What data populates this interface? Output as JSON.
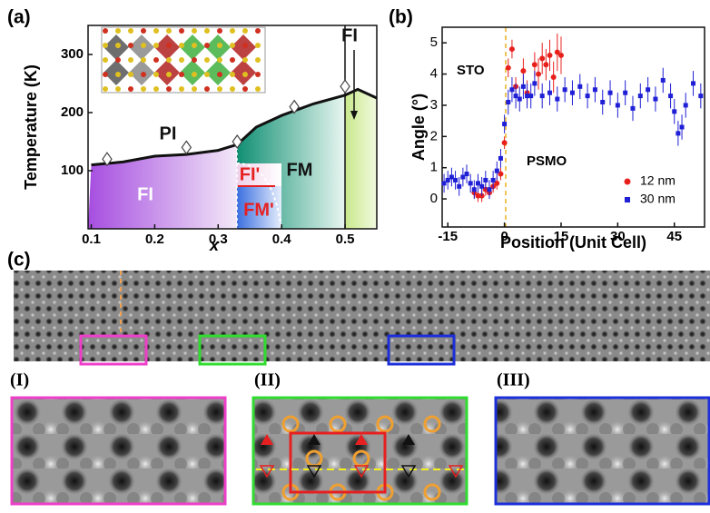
{
  "panel_labels": [
    "(a)",
    "(b)",
    "(c)"
  ],
  "inset_labels": [
    "(I)",
    "(II)",
    "(III)"
  ],
  "chart_data": [
    {
      "type": "phase",
      "x_label": "x",
      "y_label": "Temperature (K)",
      "xlim": [
        0.095,
        0.55
      ],
      "ylim": [
        0,
        350
      ],
      "xticks": [
        0.1,
        0.2,
        0.3,
        0.4,
        0.5
      ],
      "yticks": [
        100,
        200,
        300
      ],
      "boundary": {
        "x": [
          0.1,
          0.15,
          0.2,
          0.25,
          0.3,
          0.33,
          0.36,
          0.4,
          0.45,
          0.5,
          0.52,
          0.55
        ],
        "values": [
          110,
          115,
          125,
          128,
          135,
          145,
          175,
          195,
          215,
          230,
          240,
          225
        ]
      },
      "markers": {
        "x": [
          0.125,
          0.25,
          0.33,
          0.42,
          0.5
        ],
        "values": [
          120,
          140,
          150,
          210,
          245
        ]
      },
      "regions": [
        "PI",
        "FI",
        "FI'",
        "FM",
        "FM'",
        "FI"
      ]
    },
    {
      "type": "scatter",
      "x_label": "Position (Unit Cell)",
      "y_label": "Angle (°)",
      "xlim": [
        -16.5,
        53
      ],
      "ylim": [
        -0.9,
        5.5
      ],
      "xticks": [
        -15,
        0,
        15,
        30,
        45
      ],
      "yticks": [
        0,
        1,
        2,
        3,
        4,
        5
      ],
      "annotations": [
        "STO",
        "PSMO"
      ],
      "legend": "lower right",
      "series": [
        {
          "name": "12 nm",
          "color": "#e8201c",
          "marker": "circle",
          "x": [
            -8,
            -7,
            -6,
            -5,
            -4,
            -3,
            -2,
            -1,
            0,
            1,
            2,
            3,
            5,
            6,
            8,
            9,
            10,
            11,
            12,
            13,
            14,
            15
          ],
          "values": [
            0.2,
            0.1,
            0.1,
            0.3,
            0.2,
            0.4,
            0.5,
            0.8,
            1.8,
            4.2,
            4.8,
            3.6,
            4.1,
            3.4,
            4.3,
            4.0,
            4.5,
            4.3,
            4.6,
            3.9,
            4.7,
            4.6
          ],
          "errors": [
            0.2,
            0.2,
            0.2,
            0.2,
            0.2,
            0.2,
            0.2,
            0.2,
            0.2,
            0.3,
            0.3,
            0.3,
            0.4,
            0.4,
            0.4,
            0.5,
            0.5,
            0.5,
            0.5,
            0.5,
            0.6,
            0.6
          ]
        },
        {
          "name": "30 nm",
          "color": "#1f1fd6",
          "marker": "square",
          "x": [
            -16,
            -15,
            -14,
            -13,
            -12,
            -11,
            -10,
            -9,
            -8,
            -7,
            -6,
            -5,
            -4,
            -3,
            -2,
            -1,
            0,
            1,
            2,
            3,
            4,
            5,
            6,
            7,
            8,
            10,
            12,
            14,
            16,
            18,
            20,
            22,
            24,
            26,
            28,
            30,
            32,
            34,
            36,
            38,
            40,
            42,
            44,
            45,
            46,
            47,
            48,
            50,
            52
          ],
          "values": [
            0.5,
            0.6,
            0.7,
            0.6,
            0.4,
            0.7,
            0.8,
            0.5,
            0.3,
            0.5,
            0.4,
            0.6,
            0.3,
            0.6,
            0.9,
            1.3,
            2.4,
            3.1,
            3.5,
            3.3,
            3.2,
            3.6,
            3.3,
            3.3,
            3.7,
            3.3,
            3.4,
            3.2,
            3.5,
            3.4,
            3.6,
            3.3,
            3.5,
            3.1,
            3.4,
            3.0,
            3.4,
            2.9,
            3.3,
            3.5,
            3.2,
            3.8,
            3.3,
            2.8,
            2.1,
            2.3,
            3.0,
            3.7,
            3.3
          ],
          "errors": [
            0.3,
            0.3,
            0.3,
            0.3,
            0.3,
            0.3,
            0.3,
            0.3,
            0.3,
            0.3,
            0.3,
            0.3,
            0.3,
            0.3,
            0.3,
            0.3,
            0.3,
            0.4,
            0.4,
            0.4,
            0.4,
            0.4,
            0.4,
            0.4,
            0.4,
            0.4,
            0.4,
            0.4,
            0.4,
            0.4,
            0.4,
            0.4,
            0.4,
            0.4,
            0.4,
            0.4,
            0.4,
            0.4,
            0.4,
            0.4,
            0.4,
            0.4,
            0.4,
            0.4,
            0.4,
            0.4,
            0.4,
            0.4,
            0.4
          ]
        }
      ]
    }
  ]
}
